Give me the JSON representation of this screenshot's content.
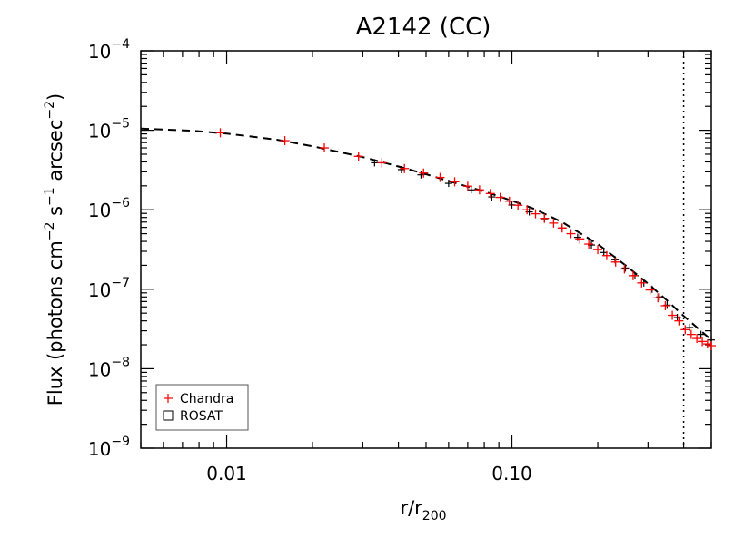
{
  "chart_data": {
    "type": "scatter",
    "title": "A2142 (CC)",
    "xlabel": "r/r",
    "xlabel_sub": "200",
    "ylabel_parts": [
      "Flux (photons cm",
      "−2",
      " s",
      "−1",
      " arcsec",
      "−2",
      ")"
    ],
    "xscale": "log",
    "yscale": "log",
    "xlim": [
      0.005,
      0.5
    ],
    "ylim": [
      1e-09,
      0.0001
    ],
    "x_ticks": [
      {
        "value": 0.01,
        "label": "0.01"
      },
      {
        "value": 0.1,
        "label": "0.10"
      }
    ],
    "y_ticks": [
      {
        "value": 0.0001,
        "base": "10",
        "exp": "−4"
      },
      {
        "value": 1e-05,
        "base": "10",
        "exp": "−5"
      },
      {
        "value": 1e-06,
        "base": "10",
        "exp": "−6"
      },
      {
        "value": 1e-07,
        "base": "10",
        "exp": "−7"
      },
      {
        "value": 1e-08,
        "base": "10",
        "exp": "−8"
      },
      {
        "value": 1e-09,
        "base": "10",
        "exp": "−9"
      }
    ],
    "vline_x": 0.4,
    "legend": {
      "position": "bottom-left",
      "entries": [
        {
          "label": "Chandra",
          "marker": "+",
          "color": "#ff0000"
        },
        {
          "label": "ROSAT",
          "marker": "square",
          "color": "#000000"
        }
      ]
    },
    "series": [
      {
        "name": "Chandra",
        "marker": "+",
        "color": "#ff0000",
        "x": [
          0.0095,
          0.016,
          0.022,
          0.029,
          0.035,
          0.042,
          0.049,
          0.056,
          0.063,
          0.07,
          0.077,
          0.084,
          0.091,
          0.098,
          0.105,
          0.113,
          0.121,
          0.13,
          0.14,
          0.15,
          0.161,
          0.173,
          0.186,
          0.2,
          0.215,
          0.231,
          0.248,
          0.266,
          0.285,
          0.305,
          0.325,
          0.345,
          0.365,
          0.385,
          0.405,
          0.425,
          0.445,
          0.465,
          0.485,
          0.5
        ],
        "y": [
          9.3e-06,
          7.4e-06,
          6e-06,
          4.7e-06,
          3.9e-06,
          3.3e-06,
          2.9e-06,
          2.55e-06,
          2.25e-06,
          1.98e-06,
          1.78e-06,
          1.6e-06,
          1.43e-06,
          1.28e-06,
          1.14e-06,
          1e-06,
          8.9e-07,
          7.8e-07,
          6.8e-07,
          5.9e-07,
          5e-07,
          4.3e-07,
          3.7e-07,
          3.15e-07,
          2.65e-07,
          2.2e-07,
          1.8e-07,
          1.48e-07,
          1.2e-07,
          9.8e-08,
          7.8e-08,
          6.2e-08,
          4.7e-08,
          4e-08,
          3.1e-08,
          2.7e-08,
          2.4e-08,
          2.2e-08,
          2.05e-08,
          1.95e-08
        ]
      },
      {
        "name": "ROSAT",
        "marker": "square",
        "color": "#000000",
        "x": [
          0.033,
          0.041,
          0.048,
          0.06,
          0.072,
          0.085,
          0.1,
          0.115,
          0.13,
          0.15,
          0.17,
          0.19,
          0.21,
          0.23,
          0.25,
          0.27,
          0.29,
          0.31,
          0.33,
          0.35,
          0.38,
          0.42,
          0.46,
          0.5
        ],
        "y": [
          3.9e-06,
          3.2e-06,
          2.75e-06,
          2.15e-06,
          1.78e-06,
          1.45e-06,
          1.15e-06,
          9.4e-07,
          7.7e-07,
          5.9e-07,
          4.5e-07,
          3.6e-07,
          2.9e-07,
          2.35e-07,
          1.85e-07,
          1.48e-07,
          1.2e-07,
          1e-07,
          8e-08,
          6.3e-08,
          4.4e-08,
          3.3e-08,
          2.7e-08,
          2.3e-08
        ]
      },
      {
        "name": "",
        "line": "dashed",
        "color": "#000000",
        "x": [
          0.005,
          0.0075,
          0.01,
          0.015,
          0.02,
          0.03,
          0.04,
          0.05,
          0.06,
          0.07,
          0.08,
          0.1,
          0.12,
          0.15,
          0.2,
          0.25,
          0.3,
          0.35,
          0.4,
          0.45,
          0.5
        ],
        "y": [
          1.05e-05,
          9.9e-06,
          9.1e-06,
          7.6e-06,
          6.3e-06,
          4.6e-06,
          3.5e-06,
          2.8e-06,
          2.3e-06,
          1.95e-06,
          1.7e-06,
          1.3e-06,
          1.02e-06,
          7e-07,
          3.7e-07,
          2e-07,
          1.18e-07,
          7.2e-08,
          4.6e-08,
          3.2e-08,
          2.3e-08
        ]
      }
    ]
  }
}
